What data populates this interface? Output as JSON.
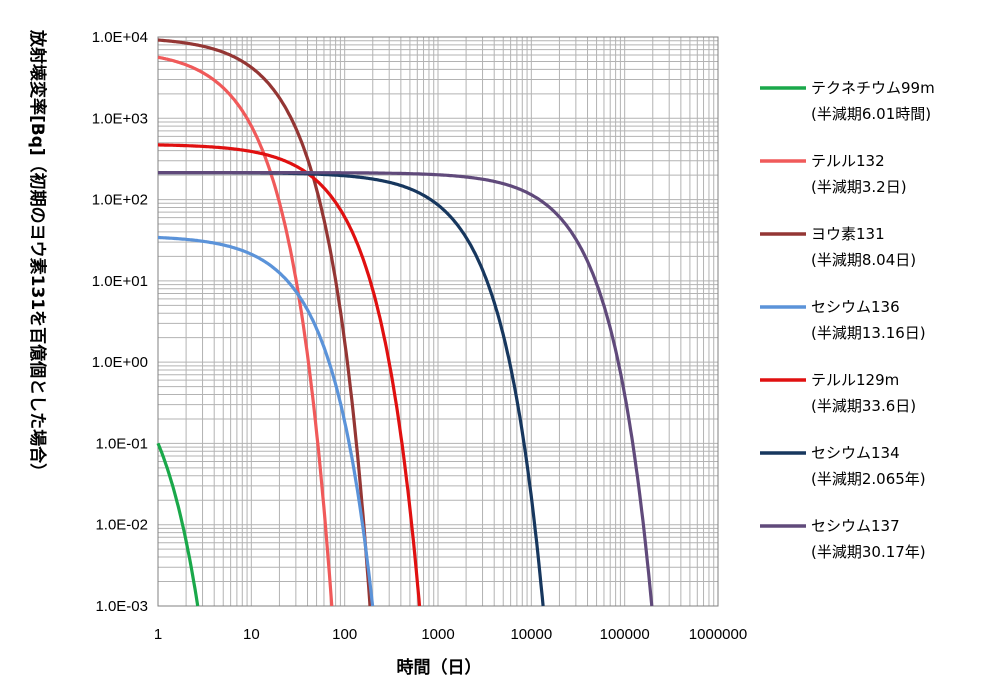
{
  "chart_data": {
    "type": "line",
    "title": "",
    "xlabel": "時間（日）",
    "ylabel": "放射壊変率[Bq]（初期のヨウ素131を百億個とした場合）",
    "xscale": "log",
    "yscale": "log",
    "xlim": [
      1,
      1000000
    ],
    "ylim": [
      0.001,
      10000
    ],
    "grid": true,
    "legend": "right",
    "x_ticks": [
      "1",
      "10",
      "100",
      "1000",
      "10000",
      "100000",
      "1000000"
    ],
    "y_ticks": [
      "1.0E+04",
      "1.0E+03",
      "1.0E+02",
      "1.0E+01",
      "1.0E+00",
      "1.0E-01",
      "1.0E-02",
      "1.0E-03"
    ],
    "series": [
      {
        "name": "テクネチウム99m",
        "half_life": "(半減期6.01時間)",
        "color": "#1aa84a",
        "A0": 1.6,
        "T_days": 0.2504
      },
      {
        "name": "テルル132",
        "half_life": "(半減期3.2日)",
        "color": "#f05a5a",
        "A0": 7000,
        "T_days": 3.2
      },
      {
        "name": "ヨウ素131",
        "half_life": "(半減期8.04日)",
        "color": "#943634",
        "A0": 10000,
        "T_days": 8.04
      },
      {
        "name": "セシウム136",
        "half_life": "(半減期13.16日)",
        "color": "#5b93d9",
        "A0": 36,
        "T_days": 13.16
      },
      {
        "name": "テルル129m",
        "half_life": "(半減期33.6日)",
        "color": "#e01010",
        "A0": 480,
        "T_days": 33.6
      },
      {
        "name": "セシウム134",
        "half_life": "(半減期2.065年)",
        "color": "#17375e",
        "A0": 215,
        "T_days": 754.2
      },
      {
        "name": "セシウム137",
        "half_life": "(半減期30.17年)",
        "color": "#604a7b",
        "A0": 215,
        "T_days": 11020
      }
    ]
  }
}
